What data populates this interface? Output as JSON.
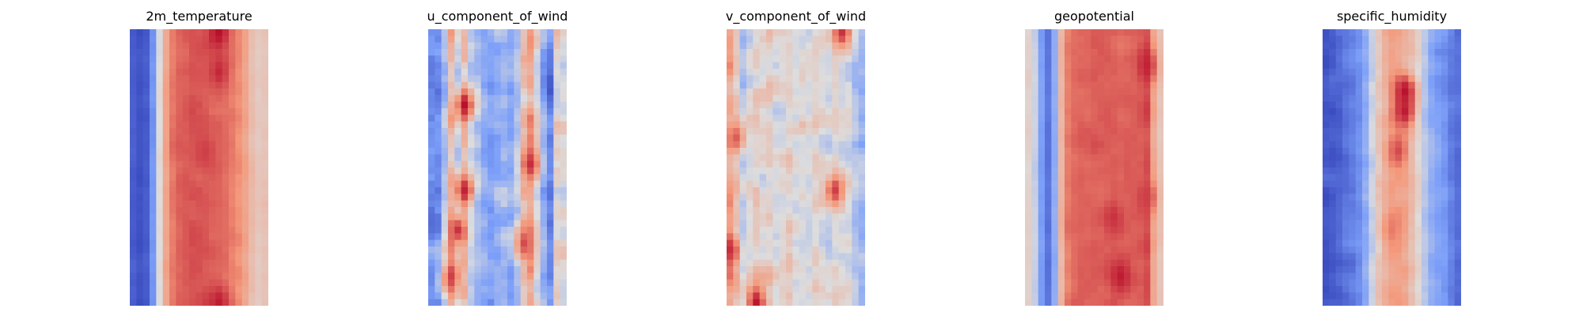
{
  "chart_data": [
    {
      "type": "heatmap",
      "title": "2m_temperature",
      "colormap": "coolwarm",
      "axes_visible": false,
      "grid": false,
      "columns": 21,
      "rows": 42,
      "column_profile": [
        0.05,
        0.02,
        0.05,
        0.22,
        0.5,
        0.7,
        0.8,
        0.84,
        0.85,
        0.86,
        0.86,
        0.86,
        0.85,
        0.84,
        0.82,
        0.79,
        0.76,
        0.7,
        0.62,
        0.58,
        0.6
      ],
      "variability": 0.05,
      "hot_spots": [
        {
          "col": 13,
          "row": 0,
          "value": 0.98
        },
        {
          "col": 13,
          "row": 6,
          "value": 0.94
        },
        {
          "col": 13,
          "row": 41,
          "value": 0.96
        },
        {
          "col": 11,
          "row": 18,
          "value": 0.9
        }
      ]
    },
    {
      "type": "heatmap",
      "title": "u_component_of_wind",
      "colormap": "coolwarm",
      "axes_visible": false,
      "grid": false,
      "columns": 21,
      "rows": 42,
      "column_profile": [
        0.2,
        0.22,
        0.4,
        0.65,
        0.45,
        0.6,
        0.42,
        0.35,
        0.28,
        0.25,
        0.3,
        0.35,
        0.3,
        0.38,
        0.6,
        0.7,
        0.5,
        0.3,
        0.18,
        0.55,
        0.5
      ],
      "variability": 0.22,
      "hot_spots": [
        {
          "col": 5,
          "row": 11,
          "value": 0.98
        },
        {
          "col": 5,
          "row": 24,
          "value": 0.95
        },
        {
          "col": 4,
          "row": 30,
          "value": 0.92
        },
        {
          "col": 3,
          "row": 37,
          "value": 0.9
        },
        {
          "col": 15,
          "row": 20,
          "value": 0.93
        },
        {
          "col": 14,
          "row": 32,
          "value": 0.88
        }
      ]
    },
    {
      "type": "heatmap",
      "title": "v_component_of_wind",
      "colormap": "coolwarm",
      "axes_visible": false,
      "grid": false,
      "columns": 21,
      "rows": 42,
      "column_profile": [
        0.7,
        0.6,
        0.42,
        0.5,
        0.55,
        0.52,
        0.55,
        0.5,
        0.52,
        0.55,
        0.5,
        0.52,
        0.5,
        0.55,
        0.52,
        0.5,
        0.55,
        0.5,
        0.48,
        0.4,
        0.35
      ],
      "variability": 0.2,
      "hot_spots": [
        {
          "col": 4,
          "row": 41,
          "value": 0.97
        },
        {
          "col": 17,
          "row": 0,
          "value": 0.92
        },
        {
          "col": 16,
          "row": 24,
          "value": 0.9
        },
        {
          "col": 0,
          "row": 33,
          "value": 0.93
        },
        {
          "col": 1,
          "row": 16,
          "value": 0.85
        }
      ]
    },
    {
      "type": "heatmap",
      "title": "geopotential",
      "colormap": "coolwarm",
      "axes_visible": false,
      "grid": false,
      "columns": 21,
      "rows": 42,
      "column_profile": [
        0.55,
        0.45,
        0.25,
        0.12,
        0.3,
        0.65,
        0.8,
        0.83,
        0.84,
        0.84,
        0.85,
        0.85,
        0.85,
        0.85,
        0.84,
        0.84,
        0.84,
        0.85,
        0.88,
        0.7,
        0.6
      ],
      "variability": 0.05,
      "hot_spots": [
        {
          "col": 18,
          "row": 5,
          "value": 0.95
        },
        {
          "col": 13,
          "row": 28,
          "value": 0.92
        },
        {
          "col": 14,
          "row": 37,
          "value": 0.96
        },
        {
          "col": 18,
          "row": 25,
          "value": 0.9
        }
      ]
    },
    {
      "type": "heatmap",
      "title": "specific_humidity",
      "colormap": "coolwarm",
      "axes_visible": false,
      "grid": false,
      "columns": 21,
      "rows": 42,
      "column_profile": [
        0.03,
        0.05,
        0.08,
        0.12,
        0.15,
        0.2,
        0.3,
        0.45,
        0.58,
        0.65,
        0.72,
        0.72,
        0.68,
        0.6,
        0.52,
        0.4,
        0.3,
        0.25,
        0.22,
        0.15,
        0.1
      ],
      "variability": 0.1,
      "hot_spots": [
        {
          "col": 12,
          "row": 9,
          "value": 0.98
        },
        {
          "col": 12,
          "row": 12,
          "value": 0.96
        },
        {
          "col": 11,
          "row": 18,
          "value": 0.88
        },
        {
          "col": 10,
          "row": 30,
          "value": 0.8
        }
      ]
    }
  ]
}
